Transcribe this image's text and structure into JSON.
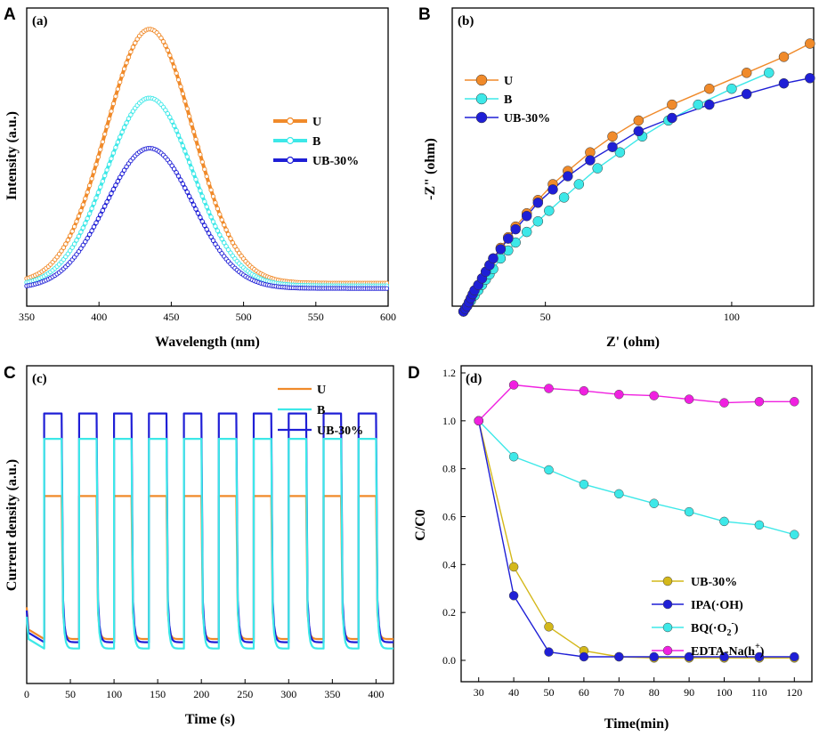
{
  "colors": {
    "U_spectrum": "#f08a2a",
    "B_spectrum": "#3de8e8",
    "UB30_spectrum": "#1f1fd6",
    "UB30_degradation": "#d4b81a",
    "IPA": "#1f1fd6",
    "BQ": "#3de8e8",
    "EDTA": "#f020e0"
  },
  "chart_data": [
    {
      "panel": "A",
      "label": "(a)",
      "type": "line",
      "xlabel": "Wavelength (nm)",
      "ylabel": "Intensity (a.u.)",
      "xlim": [
        350,
        600
      ],
      "ylim": [
        0,
        1.08
      ],
      "xticks": [
        350,
        400,
        450,
        500,
        550,
        600
      ],
      "yticks": [],
      "peak_center": 435,
      "peak_sigma": 30,
      "series": [
        {
          "name": "U",
          "baseline": 0.04,
          "peak": 1.0
        },
        {
          "name": "B",
          "baseline": 0.03,
          "peak": 0.74
        },
        {
          "name": "UB-30%",
          "baseline": 0.02,
          "peak": 0.55
        }
      ]
    },
    {
      "panel": "B",
      "label": "(b)",
      "type": "scatter",
      "xlabel": "Z' (ohm)",
      "ylabel": "-Z\" (ohm)",
      "xlim": [
        25,
        122
      ],
      "ylim": [
        0,
        100
      ],
      "xticks": [
        50,
        100
      ],
      "yticks": [],
      "series": [
        {
          "name": "U",
          "x": [
            28,
            28.5,
            29,
            29.5,
            30,
            30.5,
            31,
            32,
            33,
            34,
            35,
            36,
            38,
            40,
            42,
            45,
            48,
            52,
            56,
            62,
            68,
            75,
            84,
            94,
            104,
            114,
            121
          ],
          "y": [
            0,
            1,
            2,
            3.5,
            5,
            6.5,
            8,
            10,
            12.5,
            15,
            17.5,
            20,
            24,
            28,
            32,
            37,
            42,
            48,
            53,
            60,
            66,
            72,
            78,
            84,
            90,
            96,
            101
          ]
        },
        {
          "name": "B",
          "x": [
            28,
            29,
            30,
            31,
            32,
            33,
            34,
            35,
            36,
            38,
            40,
            42,
            45,
            48,
            51,
            55,
            59,
            64,
            70,
            76,
            83,
            91,
            100,
            110
          ],
          "y": [
            0,
            2,
            4,
            6,
            8,
            10,
            12,
            14,
            16,
            20,
            23,
            26,
            30,
            34,
            38,
            43,
            48,
            54,
            60,
            66,
            72,
            78,
            84,
            90
          ]
        },
        {
          "name": "UB-30%",
          "x": [
            28,
            28.5,
            29,
            29.5,
            30,
            30.5,
            31,
            32,
            33,
            34,
            35,
            36,
            38,
            40,
            42,
            45,
            48,
            52,
            56,
            62,
            68,
            75,
            84,
            94,
            104,
            114,
            121
          ],
          "y": [
            0,
            1,
            2,
            3.5,
            5,
            6.5,
            8,
            10,
            12.5,
            15,
            17.5,
            20,
            23.5,
            27.5,
            31,
            36,
            41,
            46,
            51,
            57,
            62,
            68,
            73,
            78,
            82,
            86,
            88
          ]
        }
      ]
    },
    {
      "panel": "C",
      "label": "(c)",
      "type": "line",
      "xlabel": "Time (s)",
      "ylabel": "Current density (a.u.)",
      "xlim": [
        0,
        420
      ],
      "ylim": [
        0,
        100
      ],
      "xticks": [
        0,
        50,
        100,
        150,
        200,
        250,
        300,
        350,
        400
      ],
      "yticks": [],
      "light_on_times": [
        20,
        60,
        100,
        140,
        180,
        220,
        260,
        300,
        340,
        380
      ],
      "light_on_duration": 20,
      "series": [
        {
          "name": "U",
          "on": 59,
          "off": 14
        },
        {
          "name": "B",
          "on": 77,
          "off": 11
        },
        {
          "name": "UB-30%",
          "on": 85,
          "off": 13
        }
      ]
    },
    {
      "panel": "D",
      "label": "(d)",
      "type": "line",
      "xlabel": "Time(min)",
      "ylabel": "C/C0",
      "xlim": [
        25,
        125
      ],
      "ylim": [
        -0.05,
        1.2
      ],
      "xticks": [
        30,
        40,
        50,
        60,
        70,
        80,
        90,
        100,
        110,
        120
      ],
      "yticks": [
        0.0,
        0.2,
        0.4,
        0.6,
        0.8,
        1.0,
        1.2
      ],
      "x": [
        30,
        40,
        50,
        60,
        70,
        80,
        90,
        100,
        110,
        120
      ],
      "series": [
        {
          "name": "UB-30%",
          "values": [
            1.0,
            0.39,
            0.14,
            0.04,
            0.015,
            0.01,
            0.01,
            0.01,
            0.01,
            0.01
          ]
        },
        {
          "name": "IPA(·OH)",
          "values": [
            1.0,
            0.27,
            0.035,
            0.015,
            0.015,
            0.015,
            0.015,
            0.015,
            0.015,
            0.015
          ]
        },
        {
          "name": "BQ(·O2-)",
          "values": [
            1.0,
            0.85,
            0.795,
            0.735,
            0.695,
            0.655,
            0.62,
            0.58,
            0.565,
            0.525
          ]
        },
        {
          "name": "EDTA-Na(h+)",
          "values": [
            1.0,
            1.15,
            1.135,
            1.125,
            1.11,
            1.105,
            1.09,
            1.075,
            1.08,
            1.08
          ]
        }
      ]
    }
  ],
  "panels": {
    "a": {
      "letter": "A",
      "sub": "(a)"
    },
    "b": {
      "letter": "B",
      "sub": "(b)"
    },
    "c": {
      "letter": "C",
      "sub": "(c)"
    },
    "d": {
      "letter": "D",
      "sub": "(d)"
    }
  },
  "legends": {
    "a": [
      "U",
      "B",
      "UB-30%"
    ],
    "b": [
      "U",
      "B",
      "UB-30%"
    ],
    "c": [
      "U",
      "B",
      "UB-30%"
    ],
    "d": [
      {
        "main": "UB-30%",
        "sub": "",
        "sup": "",
        "tail": ""
      },
      {
        "main": "IPA(·OH)",
        "sub": "",
        "sup": "",
        "tail": ""
      },
      {
        "main": "BQ(·O",
        "sub": "2",
        "sup": "-",
        "tail": ")"
      },
      {
        "main": "EDTA-Na(h",
        "sub": "",
        "sup": "+",
        "tail": ")"
      }
    ]
  }
}
